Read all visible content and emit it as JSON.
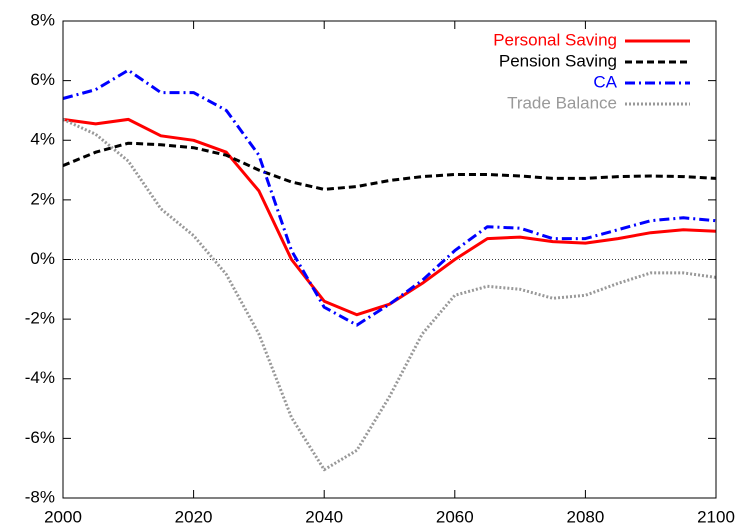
{
  "chart_data": {
    "type": "line",
    "x": [
      2000,
      2005,
      2010,
      2015,
      2020,
      2025,
      2030,
      2035,
      2040,
      2045,
      2050,
      2055,
      2060,
      2065,
      2070,
      2075,
      2080,
      2085,
      2090,
      2095,
      2100
    ],
    "series": [
      {
        "name": "Personal Saving",
        "color": "#ff0000",
        "dash": "solid",
        "values": [
          4.7,
          4.55,
          4.7,
          4.15,
          4.0,
          3.6,
          2.3,
          0.0,
          -1.4,
          -1.85,
          -1.5,
          -0.8,
          0.0,
          0.7,
          0.75,
          0.6,
          0.55,
          0.7,
          0.9,
          1.0,
          0.95
        ]
      },
      {
        "name": "Pension Saving",
        "color": "#000000",
        "dash": "dashed",
        "values": [
          3.15,
          3.6,
          3.9,
          3.85,
          3.75,
          3.5,
          3.0,
          2.6,
          2.35,
          2.45,
          2.65,
          2.78,
          2.85,
          2.85,
          2.8,
          2.72,
          2.72,
          2.78,
          2.8,
          2.78,
          2.72
        ]
      },
      {
        "name": "CA",
        "color": "#0000ff",
        "dash": "dashdot",
        "values": [
          5.4,
          5.7,
          6.35,
          5.6,
          5.6,
          5.0,
          3.5,
          0.3,
          -1.6,
          -2.2,
          -1.5,
          -0.7,
          0.3,
          1.1,
          1.05,
          0.7,
          0.7,
          1.0,
          1.3,
          1.4,
          1.3
        ]
      },
      {
        "name": "Trade Balance",
        "color": "#999999",
        "dash": "dotted",
        "values": [
          4.7,
          4.2,
          3.3,
          1.7,
          0.8,
          -0.5,
          -2.5,
          -5.3,
          -7.05,
          -6.4,
          -4.6,
          -2.5,
          -1.2,
          -0.9,
          -1.0,
          -1.3,
          -1.2,
          -0.8,
          -0.45,
          -0.45,
          -0.6
        ]
      }
    ],
    "xlim": [
      2000,
      2100
    ],
    "xticks": [
      2000,
      2020,
      2040,
      2060,
      2080,
      2100
    ],
    "ylim": [
      -8,
      8
    ],
    "yticks": [
      {
        "value": -8,
        "label": "-8%"
      },
      {
        "value": -6,
        "label": "-6%"
      },
      {
        "value": -4,
        "label": "-4%"
      },
      {
        "value": -2,
        "label": "-2%"
      },
      {
        "value": 0,
        "label": "0%"
      },
      {
        "value": 2,
        "label": "2%"
      },
      {
        "value": 4,
        "label": "4%"
      },
      {
        "value": 6,
        "label": "6%"
      },
      {
        "value": 8,
        "label": "8%"
      }
    ],
    "hline": 0,
    "legend": "top-right"
  }
}
